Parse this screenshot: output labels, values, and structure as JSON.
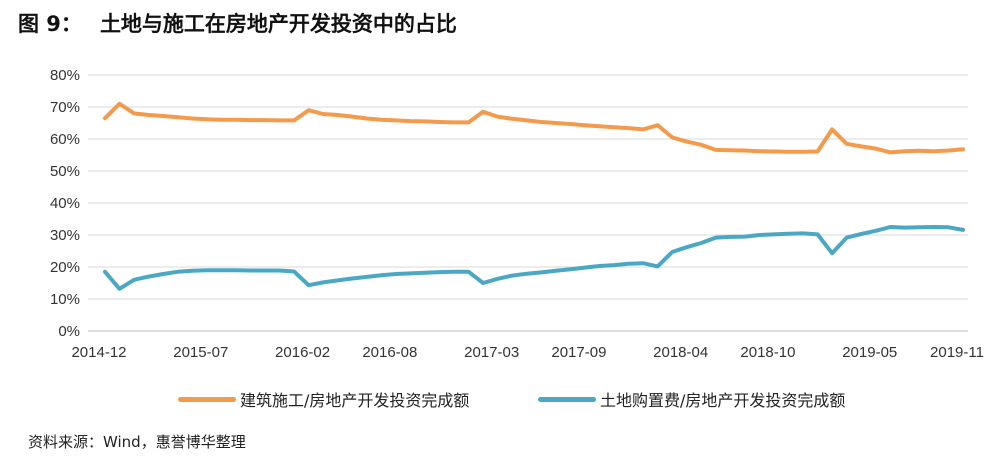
{
  "header": {
    "fig_label": "图 9：",
    "title": "土地与施工在房地产开发投资中的占比"
  },
  "footer": {
    "source": "资料来源：Wind，惠誉博华整理"
  },
  "chart_data": {
    "type": "line",
    "title": "土地与施工在房地产开发投资中的占比",
    "xlabel": "",
    "ylabel": "",
    "ylim": [
      0,
      80
    ],
    "y_ticks": [
      "0%",
      "10%",
      "20%",
      "30%",
      "40%",
      "50%",
      "60%",
      "70%",
      "80%"
    ],
    "x_tick_labels": [
      "2014-12",
      "2015-07",
      "2016-02",
      "2016-08",
      "2017-03",
      "2017-09",
      "2018-04",
      "2018-10",
      "2019-05",
      "2019-11"
    ],
    "grid": true,
    "legend_position": "bottom",
    "x": [
      "2014-12",
      "2015-01",
      "2015-02",
      "2015-03",
      "2015-04",
      "2015-05",
      "2015-06",
      "2015-07",
      "2015-08",
      "2015-09",
      "2015-10",
      "2015-11",
      "2015-12",
      "2016-01",
      "2016-02",
      "2016-03",
      "2016-04",
      "2016-05",
      "2016-06",
      "2016-07",
      "2016-08",
      "2016-09",
      "2016-10",
      "2016-11",
      "2016-12",
      "2017-01",
      "2017-02",
      "2017-03",
      "2017-04",
      "2017-05",
      "2017-06",
      "2017-07",
      "2017-08",
      "2017-09",
      "2017-10",
      "2017-11",
      "2017-12",
      "2018-01",
      "2018-02",
      "2018-03",
      "2018-04",
      "2018-05",
      "2018-06",
      "2018-07",
      "2018-08",
      "2018-09",
      "2018-10",
      "2018-11",
      "2018-12",
      "2019-01",
      "2019-02",
      "2019-03",
      "2019-04",
      "2019-05",
      "2019-06",
      "2019-07",
      "2019-08",
      "2019-09",
      "2019-10",
      "2019-11"
    ],
    "series": [
      {
        "name": "建筑施工/房地产开发投资完成额",
        "color": "#F39A4C",
        "values": [
          66.5,
          71.0,
          68.0,
          67.5,
          67.2,
          66.8,
          66.4,
          66.2,
          66.0,
          66.0,
          65.9,
          65.9,
          65.8,
          65.8,
          69.0,
          67.8,
          67.5,
          67.0,
          66.4,
          66.0,
          65.8,
          65.6,
          65.5,
          65.3,
          65.2,
          65.2,
          68.5,
          67.0,
          66.3,
          65.8,
          65.3,
          65.0,
          64.7,
          64.3,
          64.0,
          63.7,
          63.4,
          63.0,
          64.3,
          60.5,
          59.2,
          58.2,
          56.6,
          56.5,
          56.4,
          56.2,
          56.1,
          56.0,
          56.0,
          56.1,
          63.0,
          58.5,
          57.7,
          57.0,
          55.8,
          56.2,
          56.3,
          56.2,
          56.4,
          56.8
        ]
      },
      {
        "name": "土地购置费/房地产开发投资完成额",
        "color": "#4BA8C4",
        "values": [
          18.5,
          13.2,
          16.0,
          17.0,
          17.8,
          18.5,
          18.8,
          19.0,
          19.0,
          19.0,
          18.9,
          18.9,
          18.9,
          18.6,
          14.3,
          15.2,
          15.8,
          16.4,
          16.9,
          17.4,
          17.8,
          18.0,
          18.2,
          18.4,
          18.5,
          18.5,
          15.0,
          16.3,
          17.3,
          17.9,
          18.3,
          18.8,
          19.3,
          19.8,
          20.3,
          20.6,
          21.0,
          21.2,
          20.2,
          24.7,
          26.2,
          27.5,
          29.2,
          29.4,
          29.5,
          30.0,
          30.2,
          30.4,
          30.5,
          30.2,
          24.3,
          29.2,
          30.3,
          31.3,
          32.5,
          32.3,
          32.4,
          32.5,
          32.4,
          31.6
        ]
      }
    ]
  }
}
